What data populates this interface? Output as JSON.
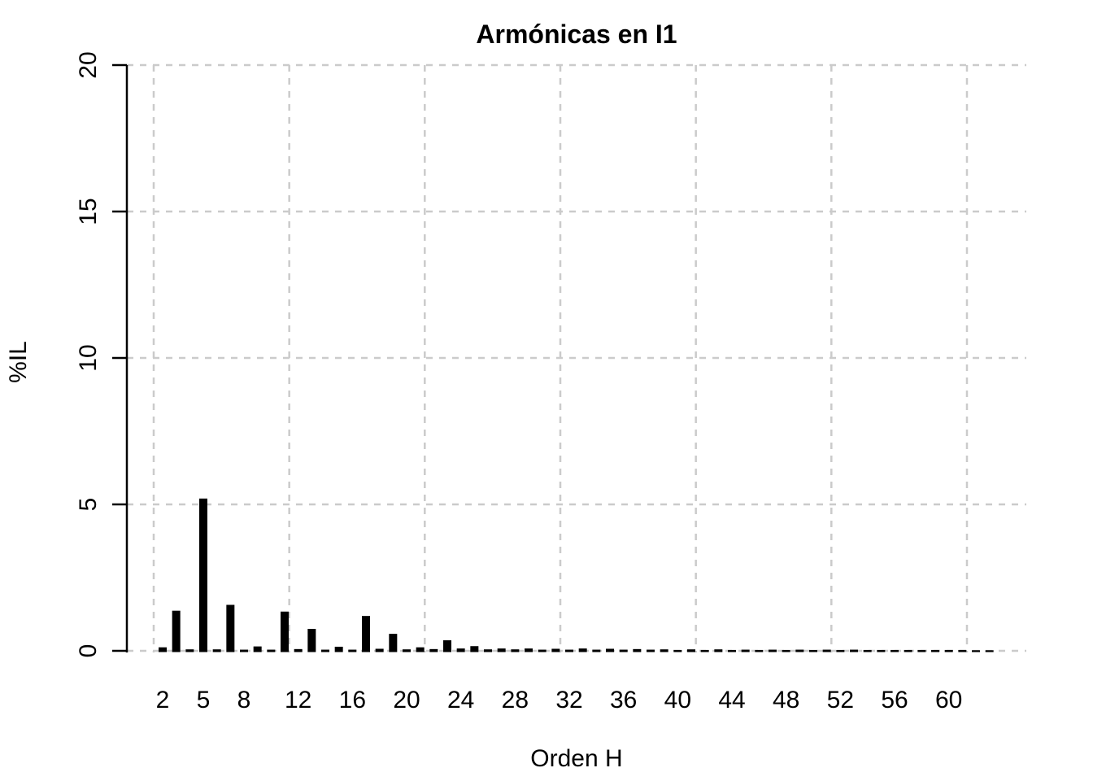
{
  "figure": {
    "title": "Armónicas en I1",
    "xlabel": "Orden H",
    "ylabel": "%IL"
  },
  "chart_data": {
    "type": "bar",
    "title": "Armónicas en I1",
    "xlabel": "Orden H",
    "ylabel": "%IL",
    "categories": [
      2,
      3,
      4,
      5,
      6,
      7,
      8,
      9,
      10,
      11,
      12,
      13,
      14,
      15,
      16,
      17,
      18,
      19,
      20,
      21,
      22,
      23,
      24,
      25,
      26,
      27,
      28,
      29,
      30,
      31,
      32,
      33,
      34,
      35,
      36,
      37,
      38,
      39,
      40,
      41,
      42,
      43,
      44,
      45,
      46,
      47,
      48,
      49,
      50,
      51,
      52,
      53,
      54,
      55,
      56,
      57,
      58,
      59,
      60,
      61,
      62,
      63
    ],
    "values": [
      0.12,
      1.37,
      0.05,
      5.2,
      0.05,
      1.57,
      0.04,
      0.15,
      0.04,
      1.34,
      0.06,
      0.75,
      0.04,
      0.14,
      0.04,
      1.19,
      0.07,
      0.58,
      0.05,
      0.12,
      0.06,
      0.36,
      0.08,
      0.16,
      0.05,
      0.08,
      0.05,
      0.08,
      0.04,
      0.07,
      0.04,
      0.08,
      0.04,
      0.07,
      0.04,
      0.06,
      0.04,
      0.05,
      0.03,
      0.05,
      0.03,
      0.05,
      0.03,
      0.04,
      0.03,
      0.04,
      0.03,
      0.04,
      0.03,
      0.04,
      0.03,
      0.04,
      0.03,
      0.03,
      0.03,
      0.03,
      0.03,
      0.03,
      0.03,
      0.03,
      0.02,
      0.02
    ],
    "x_tick_labels": [
      2,
      5,
      8,
      12,
      16,
      20,
      24,
      28,
      32,
      36,
      40,
      44,
      48,
      52,
      56,
      60
    ],
    "y_ticks": [
      0,
      5,
      10,
      15,
      20
    ],
    "ylim": [
      0,
      20
    ],
    "grid": true,
    "grid_style": "dashed",
    "bar_color": "#000000",
    "grid_color": "#CBCBCB",
    "axis_color": "#000000",
    "background_color": "#FFFFFF",
    "legend": "none"
  }
}
